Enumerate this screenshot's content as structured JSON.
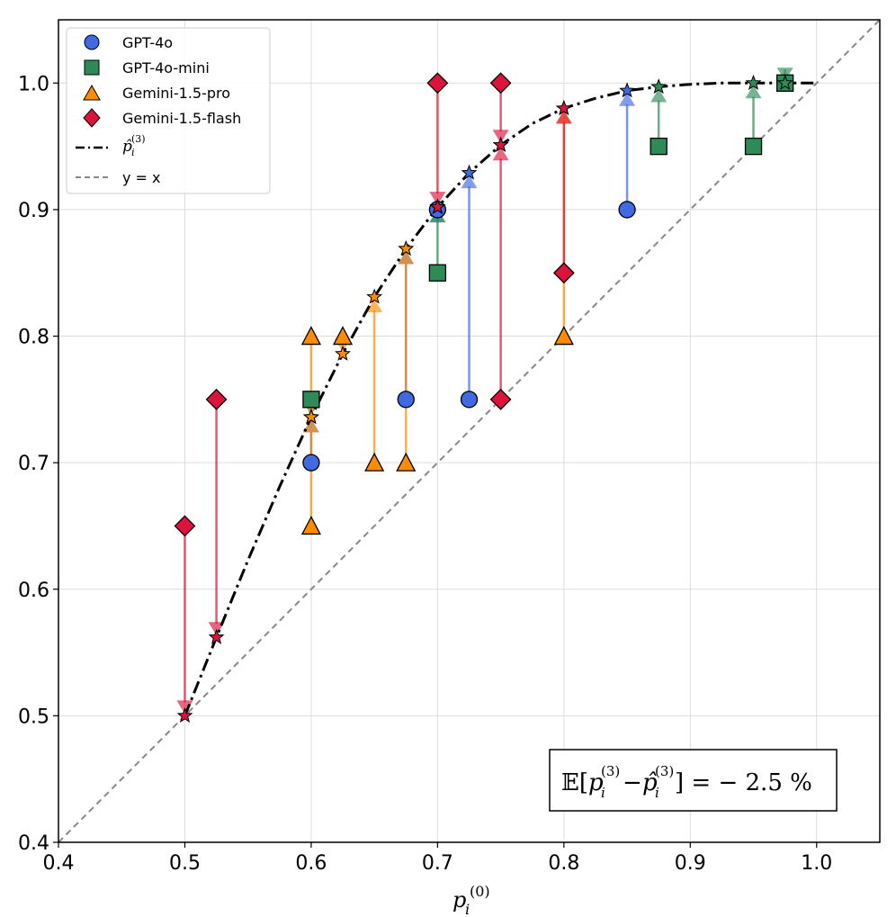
{
  "chart_data": {
    "type": "scatter",
    "xlabel": "p_i^(0)",
    "ylabel": "",
    "xlim": [
      0.4,
      1.05
    ],
    "ylim": [
      0.4,
      1.05
    ],
    "xticks": [
      "0.4",
      "0.5",
      "0.6",
      "0.7",
      "0.8",
      "0.9",
      "1.0"
    ],
    "yticks": [
      "0.4",
      "0.5",
      "0.6",
      "0.7",
      "0.8",
      "0.9",
      "1.0"
    ],
    "grid": true,
    "legend_position": "top-left",
    "legend": {
      "gpt4o": "GPT-4o",
      "gpt4omini": "GPT-4o-mini",
      "geminipro": "Gemini-1.5-pro",
      "geminiflash": "Gemini-1.5-flash",
      "fit": "p̂_i^(3)",
      "identity": "y = x"
    },
    "annotation": "𝔼[p_i^(3) − p̂_i^(3)] = − 2.5 %",
    "colors": {
      "gpt4o": "#4169e1",
      "gpt4omini": "#2e8b57",
      "geminipro": "#ff8c00",
      "geminiflash": "#dc143c"
    },
    "series": [
      {
        "key": "gpt4o",
        "name": "GPT-4o",
        "marker": "circle",
        "points": [
          {
            "x": 0.6,
            "y0": 0.7,
            "y3": 0.736
          },
          {
            "x": 0.675,
            "y0": 0.75,
            "y3": 0.869
          },
          {
            "x": 0.7,
            "y0": 0.9,
            "y3": 0.902
          },
          {
            "x": 0.725,
            "y0": 0.75,
            "y3": 0.929
          },
          {
            "x": 0.85,
            "y0": 0.9,
            "y3": 0.994
          }
        ]
      },
      {
        "key": "gpt4omini",
        "name": "GPT-4o-mini",
        "marker": "square",
        "points": [
          {
            "x": 0.6,
            "y0": 0.75,
            "y3": 0.736
          },
          {
            "x": 0.7,
            "y0": 0.85,
            "y3": 0.902
          },
          {
            "x": 0.875,
            "y0": 0.95,
            "y3": 0.997
          },
          {
            "x": 0.95,
            "y0": 0.95,
            "y3": 1.0
          },
          {
            "x": 0.975,
            "y0": 1.0,
            "y3": 1.0
          }
        ]
      },
      {
        "key": "geminipro",
        "name": "Gemini-1.5-pro",
        "marker": "triangle",
        "points": [
          {
            "x": 0.6,
            "y0": 0.65,
            "y3": 0.736
          },
          {
            "x": 0.6,
            "y0": 0.8,
            "y3": 0.736
          },
          {
            "x": 0.625,
            "y0": 0.8,
            "y3": 0.786
          },
          {
            "x": 0.65,
            "y0": 0.7,
            "y3": 0.831
          },
          {
            "x": 0.675,
            "y0": 0.7,
            "y3": 0.869
          },
          {
            "x": 0.8,
            "y0": 0.8,
            "y3": 0.98
          }
        ]
      },
      {
        "key": "geminiflash",
        "name": "Gemini-1.5-flash",
        "marker": "diamond",
        "points": [
          {
            "x": 0.5,
            "y0": 0.65,
            "y3": 0.5
          },
          {
            "x": 0.525,
            "y0": 0.75,
            "y3": 0.562
          },
          {
            "x": 0.7,
            "y0": 1.0,
            "y3": 0.902
          },
          {
            "x": 0.75,
            "y0": 1.0,
            "y3": 0.951
          },
          {
            "x": 0.75,
            "y0": 0.75,
            "y3": 0.951
          },
          {
            "x": 0.8,
            "y0": 0.85,
            "y3": 0.98
          }
        ]
      }
    ],
    "fit_curve": {
      "x": [
        0.5,
        0.525,
        0.55,
        0.575,
        0.6,
        0.625,
        0.65,
        0.675,
        0.7,
        0.725,
        0.75,
        0.775,
        0.8,
        0.825,
        0.85,
        0.875,
        0.9,
        0.925,
        0.95,
        0.975,
        1.0
      ],
      "y": [
        0.5,
        0.562,
        0.623,
        0.681,
        0.736,
        0.786,
        0.831,
        0.869,
        0.902,
        0.929,
        0.951,
        0.968,
        0.98,
        0.988,
        0.994,
        0.997,
        0.999,
        1.0,
        1.0,
        1.0,
        1.0
      ]
    }
  }
}
